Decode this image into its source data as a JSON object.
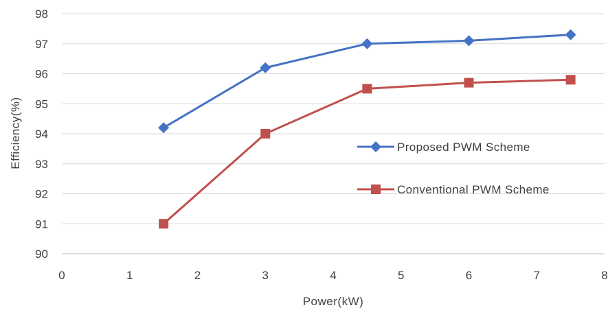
{
  "chart_data": {
    "type": "line",
    "title": "",
    "xlabel": "Power(kW)",
    "ylabel": "Efficiency(%)",
    "xlim": [
      0,
      8
    ],
    "ylim": [
      90,
      98
    ],
    "x_ticks": [
      0,
      1,
      2,
      3,
      4,
      5,
      6,
      7,
      8
    ],
    "y_ticks": [
      90,
      91,
      92,
      93,
      94,
      95,
      96,
      97,
      98
    ],
    "grid": "horizontal",
    "legend_position": "right",
    "series": [
      {
        "name": "Proposed PWM Scheme",
        "color": "#4472C4",
        "marker": "diamond",
        "x": [
          1.5,
          3,
          4.5,
          6,
          7.5
        ],
        "y": [
          94.2,
          96.2,
          97.0,
          97.1,
          97.3
        ]
      },
      {
        "name": "Conventional PWM Scheme",
        "color": "#C0504D",
        "marker": "square",
        "x": [
          1.5,
          3,
          4.5,
          6,
          7.5
        ],
        "y": [
          91.0,
          94.0,
          95.5,
          95.7,
          95.8
        ]
      }
    ]
  }
}
